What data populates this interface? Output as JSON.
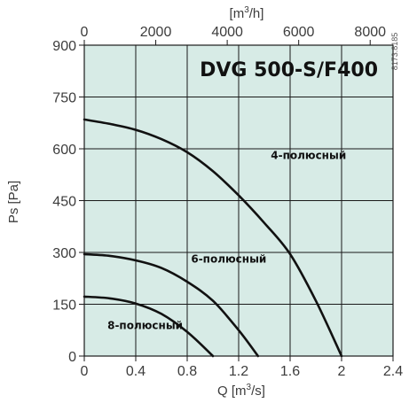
{
  "chart_data": {
    "type": "line",
    "title": "DVG 500-S/F400",
    "side_code": "8173.8185",
    "xlabel": "Q [m³/s]",
    "ylabel": "Ps [Pa]",
    "top_xlabel": "[m³/h]",
    "xlim": [
      0,
      2.4
    ],
    "ylim": [
      0,
      900
    ],
    "top_xlim": [
      0,
      8640
    ],
    "x_ticks": [
      0,
      0.4,
      0.8,
      1.2,
      1.6,
      2,
      2.4
    ],
    "x_tick_labels": [
      "0",
      "0.4",
      "0.8",
      "1.2",
      "1.6",
      "2",
      "2.4"
    ],
    "y_ticks": [
      0,
      150,
      300,
      450,
      600,
      750,
      900
    ],
    "y_tick_labels": [
      "0",
      "150",
      "300",
      "450",
      "600",
      "750",
      "900"
    ],
    "top_x_ticks": [
      0,
      2000,
      4000,
      6000,
      8000
    ],
    "top_x_tick_labels": [
      "0",
      "2000",
      "4000",
      "6000",
      "8000"
    ],
    "grid": true,
    "colors": {
      "plot_background": "#d7ebe6",
      "grid": "#1a1a1a",
      "curve": "#111111"
    },
    "series": [
      {
        "name": "4-полюсный",
        "x": [
          0,
          0.2,
          0.4,
          0.6,
          0.8,
          1.0,
          1.2,
          1.4,
          1.6,
          1.8,
          2.0
        ],
        "y": [
          685,
          672,
          655,
          628,
          590,
          535,
          465,
          385,
          295,
          160,
          0
        ]
      },
      {
        "name": "6-полюсный",
        "x": [
          0,
          0.2,
          0.4,
          0.6,
          0.8,
          1.0,
          1.2,
          1.35
        ],
        "y": [
          295,
          290,
          277,
          255,
          215,
          160,
          75,
          0
        ]
      },
      {
        "name": "8-полюсный",
        "x": [
          0,
          0.2,
          0.4,
          0.6,
          0.8,
          1.0
        ],
        "y": [
          172,
          167,
          152,
          122,
          70,
          0
        ]
      }
    ],
    "series_label_positions": [
      {
        "x": 1.45,
        "y": 570
      },
      {
        "x": 0.83,
        "y": 270
      },
      {
        "x": 0.18,
        "y": 78
      }
    ]
  }
}
